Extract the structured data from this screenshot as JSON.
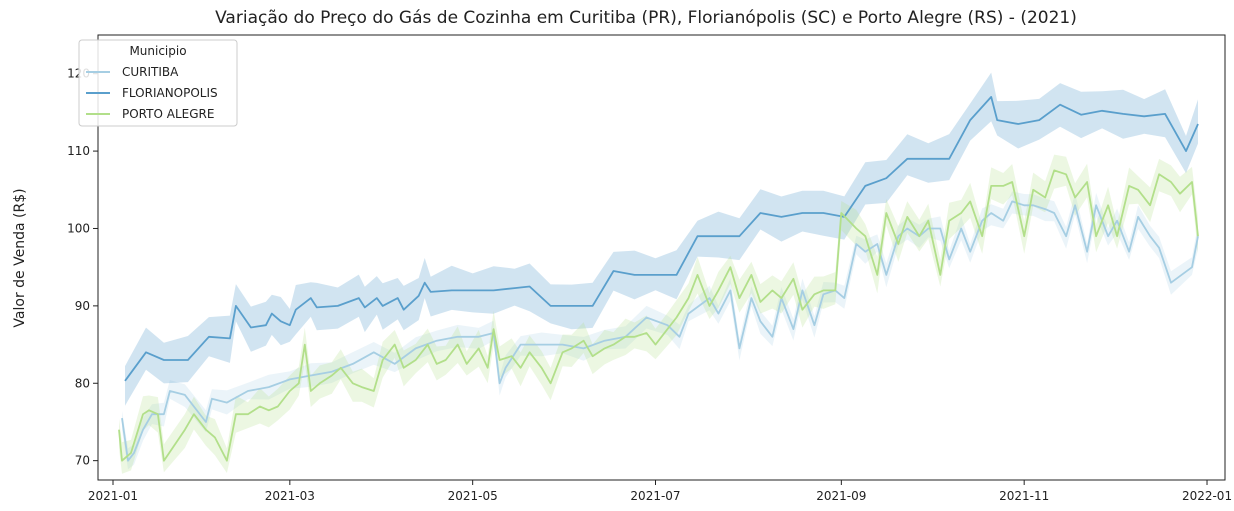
{
  "chart_data": {
    "type": "line",
    "title": "Variação do Preço do Gás de Cozinha em Curitiba (PR), Florianópolis (SC) e Porto Alegre (RS) - (2021)",
    "xlabel": "",
    "ylabel": "Valor de Venda  (R$)",
    "x_ticks": [
      "2021-01",
      "2021-03",
      "2021-05",
      "2021-07",
      "2021-09",
      "2021-11",
      "2022-01"
    ],
    "y_ticks": [
      70,
      80,
      90,
      100,
      110,
      120
    ],
    "xlim": [
      "2020-12-27",
      "2022-01-07"
    ],
    "ylim": [
      67.5,
      125
    ],
    "grid": false,
    "legend": {
      "title": "Municipio",
      "placement": "top-left"
    },
    "series": [
      {
        "name": "CURITIBA",
        "color": "#a6cee3",
        "points": [
          [
            "2021-01-04",
            75.5
          ],
          [
            "2021-01-06",
            70
          ],
          [
            "2021-01-08",
            71
          ],
          [
            "2021-01-11",
            74
          ],
          [
            "2021-01-14",
            76
          ],
          [
            "2021-01-18",
            76
          ],
          [
            "2021-01-20",
            79
          ],
          [
            "2021-01-25",
            78.5
          ],
          [
            "2021-02-01",
            75
          ],
          [
            "2021-02-03",
            78
          ],
          [
            "2021-02-08",
            77.5
          ],
          [
            "2021-02-15",
            79
          ],
          [
            "2021-02-22",
            79.5
          ],
          [
            "2021-03-01",
            80.5
          ],
          [
            "2021-03-08",
            81
          ],
          [
            "2021-03-15",
            81.5
          ],
          [
            "2021-03-22",
            82.5
          ],
          [
            "2021-03-29",
            84
          ],
          [
            "2021-04-05",
            82.5
          ],
          [
            "2021-04-12",
            84.5
          ],
          [
            "2021-04-19",
            85.5
          ],
          [
            "2021-04-26",
            86
          ],
          [
            "2021-05-03",
            86
          ],
          [
            "2021-05-08",
            86.5
          ],
          [
            "2021-05-10",
            80
          ],
          [
            "2021-05-12",
            82
          ],
          [
            "2021-05-17",
            85
          ],
          [
            "2021-05-24",
            85
          ],
          [
            "2021-05-31",
            85
          ],
          [
            "2021-06-07",
            84.5
          ],
          [
            "2021-06-14",
            85.5
          ],
          [
            "2021-06-21",
            86
          ],
          [
            "2021-06-28",
            88.5
          ],
          [
            "2021-07-05",
            87.5
          ],
          [
            "2021-07-09",
            86
          ],
          [
            "2021-07-12",
            89
          ],
          [
            "2021-07-19",
            91
          ],
          [
            "2021-07-22",
            89
          ],
          [
            "2021-07-26",
            92
          ],
          [
            "2021-07-29",
            84.5
          ],
          [
            "2021-08-02",
            91
          ],
          [
            "2021-08-05",
            88
          ],
          [
            "2021-08-09",
            86
          ],
          [
            "2021-08-12",
            91
          ],
          [
            "2021-08-16",
            87
          ],
          [
            "2021-08-19",
            92
          ],
          [
            "2021-08-23",
            87.5
          ],
          [
            "2021-08-26",
            91.5
          ],
          [
            "2021-08-30",
            92
          ],
          [
            "2021-09-02",
            91
          ],
          [
            "2021-09-06",
            98
          ],
          [
            "2021-09-09",
            97
          ],
          [
            "2021-09-13",
            98
          ],
          [
            "2021-09-16",
            94
          ],
          [
            "2021-09-20",
            99
          ],
          [
            "2021-09-23",
            100
          ],
          [
            "2021-09-27",
            99
          ],
          [
            "2021-09-30",
            100
          ],
          [
            "2021-10-04",
            100
          ],
          [
            "2021-10-07",
            96
          ],
          [
            "2021-10-11",
            100
          ],
          [
            "2021-10-14",
            97
          ],
          [
            "2021-10-18",
            101
          ],
          [
            "2021-10-21",
            102
          ],
          [
            "2021-10-25",
            101
          ],
          [
            "2021-10-28",
            103.5
          ],
          [
            "2021-11-01",
            103
          ],
          [
            "2021-11-04",
            103
          ],
          [
            "2021-11-08",
            102.5
          ],
          [
            "2021-11-11",
            102
          ],
          [
            "2021-11-15",
            99
          ],
          [
            "2021-11-18",
            103
          ],
          [
            "2021-11-22",
            97
          ],
          [
            "2021-11-25",
            103
          ],
          [
            "2021-11-29",
            99
          ],
          [
            "2021-12-02",
            101
          ],
          [
            "2021-12-06",
            97
          ],
          [
            "2021-12-09",
            101.5
          ],
          [
            "2021-12-13",
            99
          ],
          [
            "2021-12-16",
            97.5
          ],
          [
            "2021-12-20",
            93
          ],
          [
            "2021-12-27",
            95
          ],
          [
            "2021-12-29",
            99
          ]
        ]
      },
      {
        "name": "FLORIANOPOLIS",
        "color": "#5a9fcc",
        "points": [
          [
            "2021-01-05",
            80.3
          ],
          [
            "2021-01-12",
            84
          ],
          [
            "2021-01-18",
            83
          ],
          [
            "2021-01-26",
            83
          ],
          [
            "2021-02-02",
            86
          ],
          [
            "2021-02-09",
            85.8
          ],
          [
            "2021-02-11",
            90
          ],
          [
            "2021-02-16",
            87.2
          ],
          [
            "2021-02-21",
            87.5
          ],
          [
            "2021-02-23",
            89
          ],
          [
            "2021-02-26",
            88
          ],
          [
            "2021-03-01",
            87.5
          ],
          [
            "2021-03-03",
            89.5
          ],
          [
            "2021-03-08",
            91
          ],
          [
            "2021-03-10",
            89.8
          ],
          [
            "2021-03-17",
            90
          ],
          [
            "2021-03-24",
            91
          ],
          [
            "2021-03-26",
            89.8
          ],
          [
            "2021-03-30",
            91
          ],
          [
            "2021-04-01",
            90
          ],
          [
            "2021-04-06",
            91
          ],
          [
            "2021-04-08",
            89.5
          ],
          [
            "2021-04-13",
            91.3
          ],
          [
            "2021-04-15",
            93
          ],
          [
            "2021-04-17",
            91.8
          ],
          [
            "2021-04-24",
            92
          ],
          [
            "2021-05-01",
            92
          ],
          [
            "2021-05-08",
            92
          ],
          [
            "2021-05-15",
            92.3
          ],
          [
            "2021-05-20",
            92.5
          ],
          [
            "2021-05-27",
            90
          ],
          [
            "2021-06-03",
            90
          ],
          [
            "2021-06-10",
            90
          ],
          [
            "2021-06-17",
            94.5
          ],
          [
            "2021-06-24",
            94
          ],
          [
            "2021-07-01",
            94
          ],
          [
            "2021-07-08",
            94
          ],
          [
            "2021-07-15",
            99
          ],
          [
            "2021-07-22",
            99
          ],
          [
            "2021-07-29",
            99
          ],
          [
            "2021-08-05",
            102
          ],
          [
            "2021-08-12",
            101.5
          ],
          [
            "2021-08-19",
            102
          ],
          [
            "2021-08-26",
            102
          ],
          [
            "2021-09-02",
            101.5
          ],
          [
            "2021-09-09",
            105.5
          ],
          [
            "2021-09-16",
            106.5
          ],
          [
            "2021-09-23",
            109
          ],
          [
            "2021-09-30",
            109
          ],
          [
            "2021-10-07",
            109
          ],
          [
            "2021-10-14",
            114
          ],
          [
            "2021-10-21",
            117
          ],
          [
            "2021-10-23",
            114
          ],
          [
            "2021-10-30",
            113.5
          ],
          [
            "2021-11-06",
            114
          ],
          [
            "2021-11-13",
            116
          ],
          [
            "2021-11-20",
            114.7
          ],
          [
            "2021-11-27",
            115.2
          ],
          [
            "2021-12-04",
            114.8
          ],
          [
            "2021-12-11",
            114.5
          ],
          [
            "2021-12-18",
            114.8
          ],
          [
            "2021-12-25",
            110
          ],
          [
            "2021-12-29",
            113.5
          ]
        ]
      },
      {
        "name": "PORTO ALEGRE",
        "color": "#b2df8a",
        "points": [
          [
            "2021-01-03",
            74
          ],
          [
            "2021-01-04",
            70
          ],
          [
            "2021-01-07",
            71
          ],
          [
            "2021-01-11",
            76
          ],
          [
            "2021-01-13",
            76.5
          ],
          [
            "2021-01-16",
            76
          ],
          [
            "2021-01-18",
            70
          ],
          [
            "2021-01-25",
            74
          ],
          [
            "2021-01-28",
            76
          ],
          [
            "2021-02-01",
            74
          ],
          [
            "2021-02-04",
            73
          ],
          [
            "2021-02-08",
            70
          ],
          [
            "2021-02-11",
            76
          ],
          [
            "2021-02-15",
            76
          ],
          [
            "2021-02-19",
            77
          ],
          [
            "2021-02-22",
            76.5
          ],
          [
            "2021-02-25",
            77
          ],
          [
            "2021-03-01",
            79
          ],
          [
            "2021-03-04",
            80
          ],
          [
            "2021-03-06",
            85
          ],
          [
            "2021-03-08",
            79
          ],
          [
            "2021-03-11",
            80
          ],
          [
            "2021-03-15",
            81
          ],
          [
            "2021-03-18",
            82
          ],
          [
            "2021-03-22",
            80
          ],
          [
            "2021-03-25",
            79.5
          ],
          [
            "2021-03-29",
            79
          ],
          [
            "2021-04-01",
            83
          ],
          [
            "2021-04-05",
            85
          ],
          [
            "2021-04-08",
            82
          ],
          [
            "2021-04-12",
            83
          ],
          [
            "2021-04-16",
            85
          ],
          [
            "2021-04-19",
            82.5
          ],
          [
            "2021-04-22",
            83
          ],
          [
            "2021-04-26",
            85
          ],
          [
            "2021-04-29",
            82.5
          ],
          [
            "2021-05-03",
            84.5
          ],
          [
            "2021-05-06",
            82
          ],
          [
            "2021-05-08",
            87
          ],
          [
            "2021-05-10",
            83
          ],
          [
            "2021-05-14",
            83.5
          ],
          [
            "2021-05-17",
            82
          ],
          [
            "2021-05-20",
            84
          ],
          [
            "2021-05-24",
            82
          ],
          [
            "2021-05-27",
            80
          ],
          [
            "2021-05-31",
            84
          ],
          [
            "2021-06-03",
            84.5
          ],
          [
            "2021-06-07",
            85.5
          ],
          [
            "2021-06-10",
            83.5
          ],
          [
            "2021-06-14",
            84.5
          ],
          [
            "2021-06-17",
            85
          ],
          [
            "2021-06-21",
            86
          ],
          [
            "2021-06-24",
            86
          ],
          [
            "2021-06-28",
            86.5
          ],
          [
            "2021-07-01",
            85
          ],
          [
            "2021-07-05",
            87
          ],
          [
            "2021-07-08",
            88.5
          ],
          [
            "2021-07-12",
            91
          ],
          [
            "2021-07-15",
            94
          ],
          [
            "2021-07-19",
            90
          ],
          [
            "2021-07-22",
            92
          ],
          [
            "2021-07-26",
            95
          ],
          [
            "2021-07-29",
            91
          ],
          [
            "2021-08-02",
            94
          ],
          [
            "2021-08-05",
            90.5
          ],
          [
            "2021-08-09",
            92
          ],
          [
            "2021-08-12",
            91
          ],
          [
            "2021-08-16",
            93.5
          ],
          [
            "2021-08-19",
            89.5
          ],
          [
            "2021-08-23",
            91.5
          ],
          [
            "2021-08-26",
            92
          ],
          [
            "2021-08-30",
            92
          ],
          [
            "2021-09-01",
            102
          ],
          [
            "2021-09-06",
            100
          ],
          [
            "2021-09-09",
            99
          ],
          [
            "2021-09-13",
            94
          ],
          [
            "2021-09-16",
            102
          ],
          [
            "2021-09-20",
            98
          ],
          [
            "2021-09-23",
            101.5
          ],
          [
            "2021-09-27",
            99
          ],
          [
            "2021-09-30",
            101
          ],
          [
            "2021-10-04",
            94
          ],
          [
            "2021-10-07",
            101
          ],
          [
            "2021-10-11",
            102
          ],
          [
            "2021-10-14",
            103.5
          ],
          [
            "2021-10-18",
            99
          ],
          [
            "2021-10-21",
            105.5
          ],
          [
            "2021-10-25",
            105.5
          ],
          [
            "2021-10-28",
            106
          ],
          [
            "2021-11-01",
            99
          ],
          [
            "2021-11-04",
            105
          ],
          [
            "2021-11-08",
            104
          ],
          [
            "2021-11-11",
            107.5
          ],
          [
            "2021-11-15",
            107
          ],
          [
            "2021-11-18",
            104
          ],
          [
            "2021-11-22",
            106
          ],
          [
            "2021-11-25",
            99
          ],
          [
            "2021-11-29",
            103
          ],
          [
            "2021-12-02",
            99
          ],
          [
            "2021-12-06",
            105.5
          ],
          [
            "2021-12-09",
            105
          ],
          [
            "2021-12-13",
            103
          ],
          [
            "2021-12-16",
            107
          ],
          [
            "2021-12-20",
            106
          ],
          [
            "2021-12-23",
            104.5
          ],
          [
            "2021-12-27",
            106
          ],
          [
            "2021-12-29",
            99
          ]
        ]
      }
    ]
  }
}
